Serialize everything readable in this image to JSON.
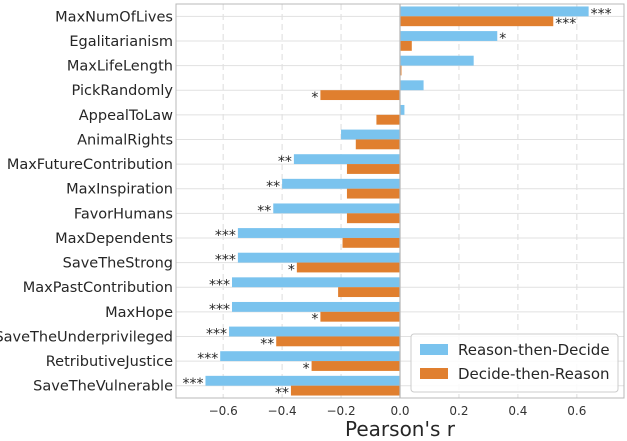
{
  "chart_data": {
    "type": "bar",
    "orientation": "horizontal",
    "xlabel": "Pearson's r",
    "xlim": [
      -0.76,
      0.76
    ],
    "xticks": [
      -0.6,
      -0.4,
      -0.2,
      0.0,
      0.2,
      0.4,
      0.6
    ],
    "xtick_labels": [
      "−0.6",
      "−0.4",
      "−0.2",
      "0.0",
      "0.2",
      "0.4",
      "0.6"
    ],
    "grid": true,
    "legend_position": "bottom-right",
    "categories": [
      "MaxNumOfLives",
      "Egalitarianism",
      "MaxLifeLength",
      "PickRandomly",
      "AppealToLaw",
      "AnimalRights",
      "MaxFutureContribution",
      "MaxInspiration",
      "FavorHumans",
      "MaxDependents",
      "SaveTheStrong",
      "MaxPastContribution",
      "MaxHope",
      "SaveTheUnderprivileged",
      "RetributiveJustice",
      "SaveTheVulnerable"
    ],
    "series": [
      {
        "name": "Reason-then-Decide",
        "color": "#7ac3ee",
        "values": [
          0.64,
          0.33,
          0.25,
          0.08,
          0.015,
          -0.2,
          -0.36,
          -0.4,
          -0.43,
          -0.55,
          -0.55,
          -0.57,
          -0.57,
          -0.58,
          -0.61,
          -0.66
        ],
        "significance": [
          "***",
          "*",
          "",
          "",
          "",
          "",
          "**",
          "**",
          "**",
          "***",
          "***",
          "***",
          "***",
          "***",
          "***",
          "***"
        ]
      },
      {
        "name": "Decide-then-Reason",
        "color": "#e07f2f",
        "values": [
          0.52,
          0.04,
          0.005,
          -0.27,
          -0.08,
          -0.15,
          -0.18,
          -0.18,
          -0.18,
          -0.195,
          -0.35,
          -0.21,
          -0.27,
          -0.42,
          -0.3,
          -0.37
        ],
        "significance": [
          "***",
          "",
          "",
          "*",
          "",
          "",
          "",
          "",
          "",
          "",
          "*",
          "",
          "*",
          "**",
          "*",
          "**"
        ]
      }
    ]
  }
}
